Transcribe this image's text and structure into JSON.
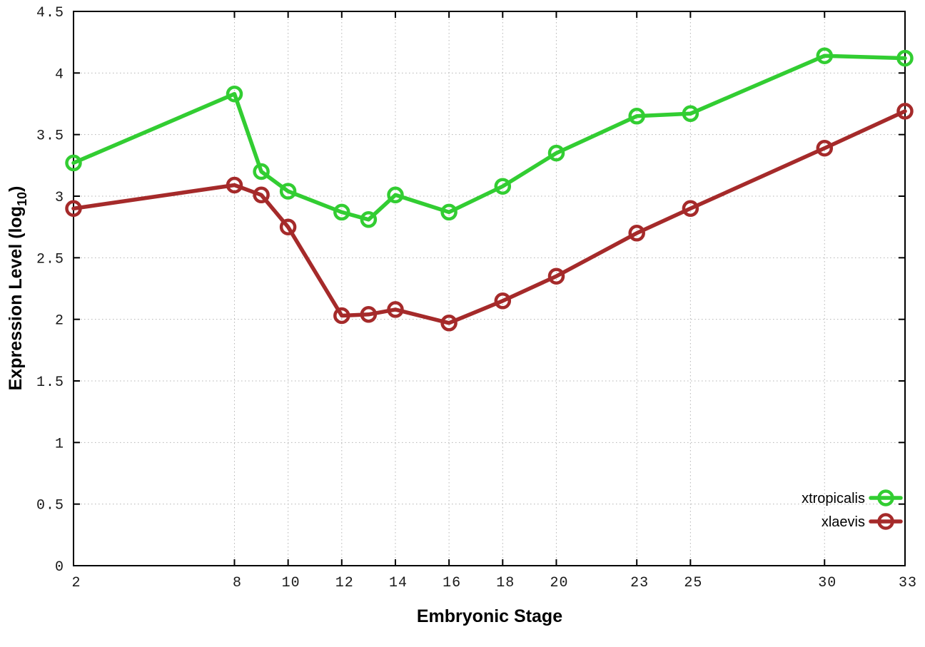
{
  "figure": {
    "background": "#ffffff"
  },
  "chart_data": {
    "type": "line",
    "title": "",
    "xlabel": "Embryonic Stage",
    "ylabel": "Expression Level (log10)",
    "ylabel_parts": {
      "pre": "Expression Level (log",
      "sub": "10",
      "post": ")"
    },
    "xlim": [
      2,
      33
    ],
    "ylim": [
      0,
      4.5
    ],
    "grid": true,
    "grid_style": "dotted",
    "legend_position": "inside-bottom-right",
    "x": [
      2,
      8,
      9,
      10,
      12,
      13,
      14,
      16,
      18,
      20,
      23,
      25,
      30,
      33
    ],
    "series": [
      {
        "name": "xtropicalis",
        "color": "#32cd32",
        "marker": "open-circle",
        "values": [
          3.27,
          3.83,
          3.2,
          3.04,
          2.87,
          2.81,
          3.01,
          2.87,
          3.08,
          3.35,
          3.65,
          3.67,
          4.14,
          4.12
        ]
      },
      {
        "name": "xlaevis",
        "color": "#a52a2a",
        "marker": "open-circle",
        "values": [
          2.9,
          3.09,
          3.01,
          2.75,
          2.03,
          2.04,
          2.08,
          1.97,
          2.15,
          2.35,
          2.7,
          2.9,
          3.39,
          3.69
        ]
      }
    ],
    "xticks": [
      {
        "value": 2,
        "label": "2"
      },
      {
        "value": 8,
        "label": "8"
      },
      {
        "value": 10,
        "label": "10"
      },
      {
        "value": 12,
        "label": "12"
      },
      {
        "value": 14,
        "label": "14"
      },
      {
        "value": 16,
        "label": "16"
      },
      {
        "value": 18,
        "label": "18"
      },
      {
        "value": 20,
        "label": "20"
      },
      {
        "value": 23,
        "label": "23"
      },
      {
        "value": 25,
        "label": "25"
      },
      {
        "value": 30,
        "label": "30"
      },
      {
        "value": 33,
        "label": "33"
      }
    ],
    "yticks": [
      {
        "value": 0,
        "label": "0"
      },
      {
        "value": 0.5,
        "label": "0.5"
      },
      {
        "value": 1,
        "label": "1"
      },
      {
        "value": 1.5,
        "label": "1.5"
      },
      {
        "value": 2,
        "label": "2"
      },
      {
        "value": 2.5,
        "label": "2.5"
      },
      {
        "value": 3,
        "label": "3"
      },
      {
        "value": 3.5,
        "label": "3.5"
      },
      {
        "value": 4,
        "label": "4"
      },
      {
        "value": 4.5,
        "label": "4.5"
      }
    ],
    "colors": {
      "grid": "#b4b4b4",
      "border": "#000000",
      "text": "#000000"
    }
  }
}
